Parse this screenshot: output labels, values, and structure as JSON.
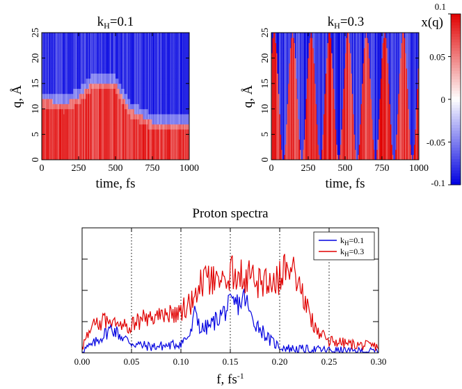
{
  "chart_data": [
    {
      "type": "heatmap",
      "panel": "left",
      "title_main": "k",
      "title_sub": "H",
      "title_rest": "=0.1",
      "xlabel": "time, fs",
      "ylabel": "q, Å",
      "xlim": [
        0,
        1000
      ],
      "ylim": [
        0,
        25
      ],
      "xticks": [
        "0",
        "250",
        "500",
        "750",
        "1000"
      ],
      "yticks": [
        "0",
        "5",
        "10",
        "15",
        "20",
        "25"
      ],
      "x_ticks_values": [
        0,
        250,
        500,
        750,
        1000
      ],
      "y_ticks_values": [
        0,
        5,
        10,
        15,
        20,
        25
      ],
      "description_boundary": [
        {
          "time": 0,
          "q": 12
        },
        {
          "time": 150,
          "q": 11
        },
        {
          "time": 250,
          "q": 12.5
        },
        {
          "time": 350,
          "q": 15.5
        },
        {
          "time": 500,
          "q": 15
        },
        {
          "time": 600,
          "q": 10
        },
        {
          "time": 750,
          "q": 7.5
        },
        {
          "time": 1000,
          "q": 7.5
        }
      ]
    },
    {
      "type": "heatmap",
      "panel": "right",
      "title_main": "k",
      "title_sub": "H",
      "title_rest": "=0.3",
      "xlabel": "time, fs",
      "ylabel": "q, Å",
      "xlim": [
        0,
        1000
      ],
      "ylim": [
        0,
        25
      ],
      "xticks": [
        "0",
        "250",
        "500",
        "750",
        "1000"
      ],
      "yticks": [
        "0",
        "5",
        "10",
        "15",
        "20",
        "25"
      ],
      "x_ticks_values": [
        0,
        250,
        500,
        750,
        1000
      ],
      "y_ticks_values": [
        0,
        5,
        10,
        15,
        20,
        25
      ],
      "oscillation_period_fs": 125
    },
    {
      "type": "line",
      "panel": "bottom",
      "title": "Proton spectra",
      "xlabel_main": "f,  fs",
      "xlabel_sup": "-1",
      "ylabel": "",
      "xlim": [
        0,
        0.3
      ],
      "xticks": [
        "0.00",
        "0.05",
        "0.10",
        "0.15",
        "0.20",
        "0.25",
        "0.30"
      ],
      "x_ticks_values": [
        0,
        0.05,
        0.1,
        0.15,
        0.2,
        0.25,
        0.3
      ],
      "y_ticks_values": [
        0.25,
        0.5,
        0.75
      ],
      "ylim": [
        0,
        1
      ],
      "grid_x_dotted": [
        0.05,
        0.1,
        0.15,
        0.2,
        0.25
      ],
      "legend_position": "top-right",
      "series": [
        {
          "label_main": "k",
          "label_sub": "H",
          "label_rest": "=0.1",
          "color": "#0000e0",
          "anchors": [
            [
              0.0,
              0.02
            ],
            [
              0.01,
              0.06
            ],
            [
              0.02,
              0.13
            ],
            [
              0.03,
              0.2
            ],
            [
              0.04,
              0.13
            ],
            [
              0.05,
              0.08
            ],
            [
              0.06,
              0.06
            ],
            [
              0.07,
              0.05
            ],
            [
              0.08,
              0.055
            ],
            [
              0.09,
              0.06
            ],
            [
              0.1,
              0.08
            ],
            [
              0.11,
              0.15
            ],
            [
              0.115,
              0.35
            ],
            [
              0.12,
              0.18
            ],
            [
              0.13,
              0.22
            ],
            [
              0.14,
              0.3
            ],
            [
              0.15,
              0.38
            ],
            [
              0.16,
              0.4
            ],
            [
              0.165,
              0.45
            ],
            [
              0.17,
              0.3
            ],
            [
              0.18,
              0.2
            ],
            [
              0.19,
              0.1
            ],
            [
              0.2,
              0.05
            ],
            [
              0.21,
              0.035
            ],
            [
              0.22,
              0.03
            ],
            [
              0.24,
              0.025
            ],
            [
              0.27,
              0.015
            ],
            [
              0.3,
              0.01
            ]
          ]
        },
        {
          "label_main": "k",
          "label_sub": "H",
          "label_rest": "=0.3",
          "color": "#e00000",
          "anchors": [
            [
              0.0,
              0.05
            ],
            [
              0.01,
              0.2
            ],
            [
              0.02,
              0.25
            ],
            [
              0.03,
              0.28
            ],
            [
              0.04,
              0.25
            ],
            [
              0.05,
              0.22
            ],
            [
              0.06,
              0.27
            ],
            [
              0.07,
              0.28
            ],
            [
              0.08,
              0.3
            ],
            [
              0.09,
              0.32
            ],
            [
              0.1,
              0.33
            ],
            [
              0.11,
              0.4
            ],
            [
              0.12,
              0.55
            ],
            [
              0.13,
              0.58
            ],
            [
              0.14,
              0.52
            ],
            [
              0.15,
              0.65
            ],
            [
              0.16,
              0.62
            ],
            [
              0.17,
              0.6
            ],
            [
              0.18,
              0.55
            ],
            [
              0.19,
              0.58
            ],
            [
              0.2,
              0.6
            ],
            [
              0.21,
              0.75
            ],
            [
              0.22,
              0.55
            ],
            [
              0.23,
              0.3
            ],
            [
              0.24,
              0.15
            ],
            [
              0.25,
              0.1
            ],
            [
              0.27,
              0.07
            ],
            [
              0.3,
              0.05
            ]
          ]
        }
      ]
    }
  ],
  "colorbar": {
    "label": "x(q)",
    "ticks": [
      "0.1",
      "0.05",
      "0",
      "-0.05",
      "-0.1"
    ],
    "tick_values": [
      0.1,
      0.05,
      0,
      -0.05,
      -0.1
    ],
    "range": [
      -0.1,
      0.1
    ],
    "colors": {
      "positive": "#e00000",
      "zero": "#ffffff",
      "negative": "#0000e0"
    }
  }
}
